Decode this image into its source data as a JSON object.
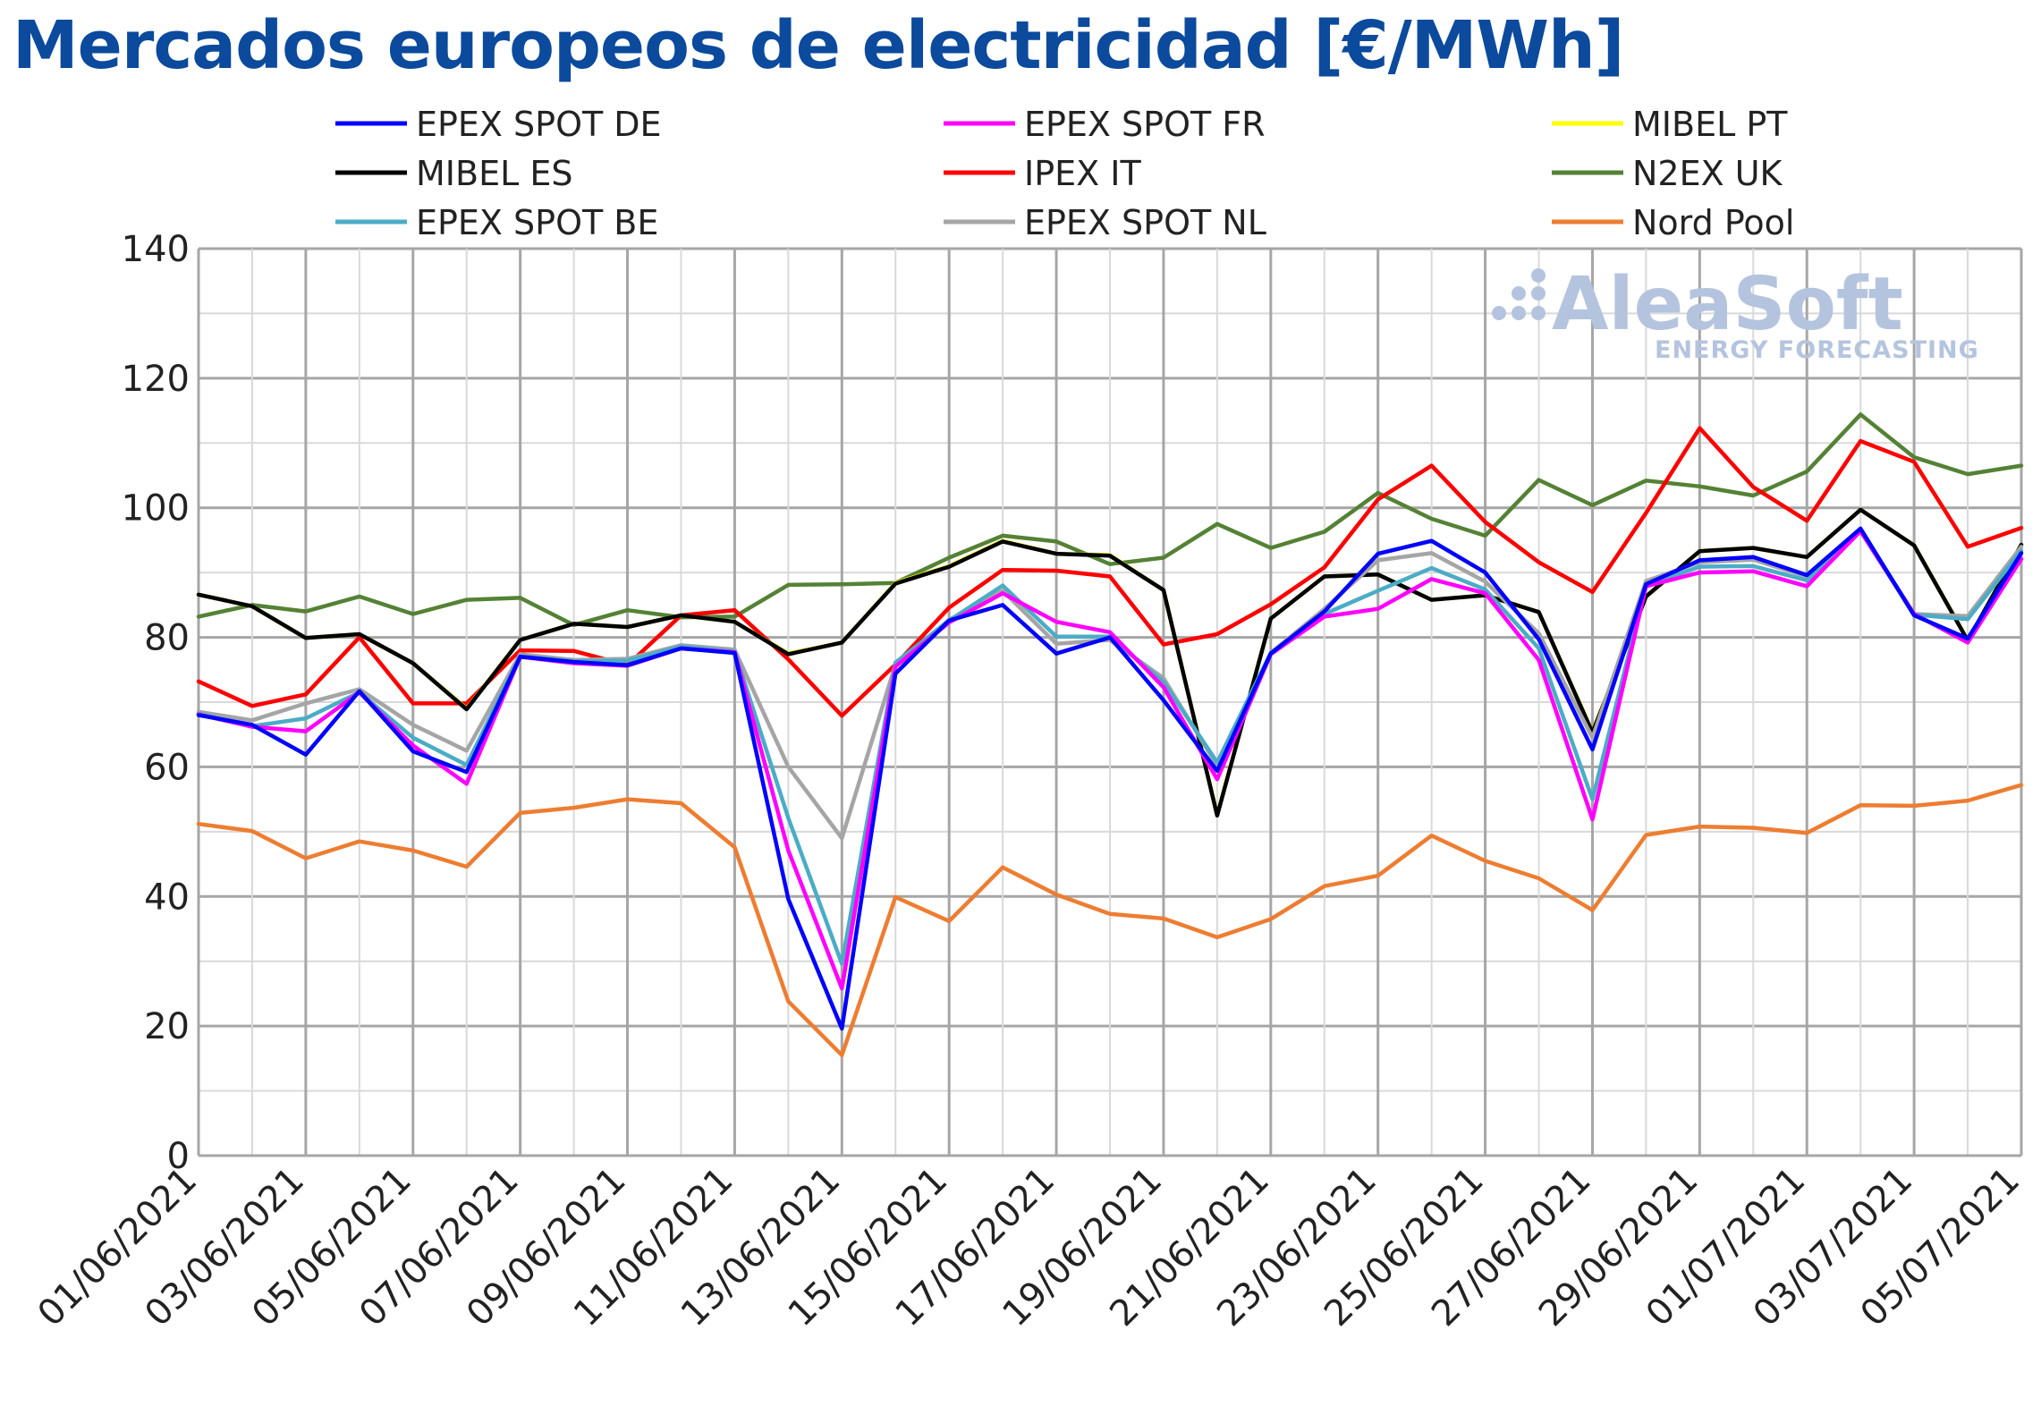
{
  "title": "Mercados europeos de electricidad [€/MWh]",
  "watermark": {
    "brand": "AleaSoft",
    "tagline": "ENERGY FORECASTING",
    "color": "#b5c4de"
  },
  "chart_data": {
    "type": "line",
    "title": "Mercados europeos de electricidad [€/MWh]",
    "xlabel": "",
    "ylabel": "",
    "ylim": [
      0,
      140
    ],
    "yticks": [
      "0",
      "20",
      "40",
      "60",
      "80",
      "100",
      "120",
      "140"
    ],
    "grid": true,
    "legend_position": "top",
    "x": [
      "01/06/2021",
      "02/06/2021",
      "03/06/2021",
      "04/06/2021",
      "05/06/2021",
      "06/06/2021",
      "07/06/2021",
      "08/06/2021",
      "09/06/2021",
      "10/06/2021",
      "11/06/2021",
      "12/06/2021",
      "13/06/2021",
      "14/06/2021",
      "15/06/2021",
      "16/06/2021",
      "17/06/2021",
      "18/06/2021",
      "19/06/2021",
      "20/06/2021",
      "21/06/2021",
      "22/06/2021",
      "23/06/2021",
      "24/06/2021",
      "25/06/2021",
      "26/06/2021",
      "27/06/2021",
      "28/06/2021",
      "29/06/2021",
      "30/06/2021",
      "01/07/2021",
      "02/07/2021",
      "03/07/2021",
      "04/07/2021",
      "05/07/2021"
    ],
    "x_tick_labels": [
      "01/06/2021",
      "03/06/2021",
      "05/06/2021",
      "07/06/2021",
      "09/06/2021",
      "11/06/2021",
      "13/06/2021",
      "15/06/2021",
      "17/06/2021",
      "19/06/2021",
      "21/06/2021",
      "23/06/2021",
      "25/06/2021",
      "27/06/2021",
      "29/06/2021",
      "01/07/2021",
      "03/07/2021",
      "05/07/2021"
    ],
    "series": [
      {
        "name": "N2EX UK",
        "color": "#548235",
        "values": [
          83.2,
          85.0,
          84.0,
          86.3,
          83.6,
          85.8,
          86.1,
          81.9,
          84.2,
          83.1,
          83.2,
          88.1,
          88.2,
          88.4,
          92.3,
          95.7,
          94.8,
          91.3,
          92.3,
          97.5,
          93.8,
          96.3,
          102.3,
          98.3,
          95.7,
          104.3,
          100.4,
          104.2,
          103.3,
          101.9,
          105.6,
          114.4,
          107.8,
          105.2,
          106.5
        ]
      },
      {
        "name": "IPEX IT",
        "color": "#ff0000",
        "values": [
          73.2,
          69.4,
          71.2,
          80.0,
          69.8,
          69.8,
          78.0,
          77.9,
          75.7,
          83.4,
          84.2,
          76.6,
          67.9,
          75.8,
          84.6,
          90.4,
          90.3,
          89.4,
          78.9,
          80.5,
          85.1,
          90.8,
          101.3,
          106.5,
          97.8,
          91.6,
          87.0,
          99.2,
          112.3,
          103.2,
          98.0,
          110.3,
          107.1,
          94.0,
          96.9
        ]
      },
      {
        "name": "MIBEL PT",
        "color": "#ffff00",
        "values": [
          86.6,
          84.8,
          79.9,
          80.5,
          76.0,
          69.0,
          79.6,
          82.1,
          81.6,
          83.4,
          82.4,
          77.5,
          79.2,
          88.4,
          91.0,
          94.9,
          92.9,
          92.7,
          87.3,
          52.6,
          82.9,
          89.4,
          89.7,
          85.8,
          86.5,
          83.9,
          65.4,
          86.3,
          93.3,
          93.8,
          92.4,
          99.7,
          94.2,
          79.6,
          94.3
        ]
      },
      {
        "name": "MIBEL ES",
        "color": "#000000",
        "values": [
          86.6,
          84.8,
          79.9,
          80.5,
          76.0,
          68.9,
          79.6,
          82.1,
          81.6,
          83.4,
          82.4,
          77.4,
          79.2,
          88.3,
          90.9,
          94.8,
          92.9,
          92.6,
          87.3,
          52.5,
          82.9,
          89.4,
          89.7,
          85.8,
          86.5,
          83.9,
          65.3,
          86.3,
          93.3,
          93.8,
          92.4,
          99.7,
          94.2,
          79.5,
          94.3
        ]
      },
      {
        "name": "EPEX SPOT NL",
        "color": "#a5a5a5",
        "values": [
          68.5,
          67.2,
          69.8,
          72.0,
          66.5,
          62.5,
          77.4,
          76.5,
          76.7,
          78.8,
          78.1,
          60.0,
          49.0,
          75.8,
          82.7,
          87.2,
          79.0,
          79.6,
          73.7,
          60.2,
          77.6,
          84.4,
          91.9,
          93.0,
          88.6,
          80.6,
          64.5,
          88.7,
          91.6,
          92.0,
          89.4,
          96.6,
          83.6,
          83.3,
          94.0
        ]
      },
      {
        "name": "EPEX SPOT BE",
        "color": "#4bacc6",
        "values": [
          68.2,
          66.3,
          67.5,
          71.5,
          64.5,
          60.3,
          77.1,
          76.3,
          76.4,
          78.6,
          77.8,
          52.1,
          29.6,
          76.1,
          82.6,
          88.0,
          80.1,
          80.1,
          73.1,
          60.7,
          77.6,
          83.6,
          87.2,
          90.7,
          87.4,
          78.3,
          55.0,
          88.0,
          90.9,
          91.0,
          88.8,
          96.4,
          83.5,
          82.8,
          93.4
        ]
      },
      {
        "name": "EPEX SPOT FR",
        "color": "#ff00ff",
        "values": [
          68.1,
          66.2,
          65.5,
          71.5,
          63.3,
          57.4,
          77.0,
          76.0,
          75.6,
          78.3,
          77.7,
          47.1,
          25.8,
          75.5,
          82.3,
          86.8,
          82.4,
          80.8,
          72.3,
          58.1,
          77.4,
          83.2,
          84.4,
          89.0,
          86.8,
          76.5,
          51.9,
          87.9,
          90.0,
          90.2,
          87.9,
          96.4,
          83.6,
          79.2,
          92.1
        ]
      },
      {
        "name": "EPEX SPOT DE",
        "color": "#0000ff",
        "values": [
          68.0,
          66.5,
          61.9,
          71.7,
          62.4,
          59.2,
          77.0,
          76.2,
          75.7,
          78.3,
          77.6,
          39.6,
          19.6,
          74.4,
          82.6,
          85.0,
          77.5,
          80.0,
          70.3,
          59.4,
          77.5,
          84.0,
          92.9,
          94.9,
          90.0,
          79.7,
          62.7,
          88.2,
          91.9,
          92.4,
          89.6,
          96.8,
          83.4,
          79.8,
          93.0
        ]
      },
      {
        "name": "Nord Pool",
        "color": "#ed7d31",
        "values": [
          51.2,
          50.1,
          45.9,
          48.5,
          47.1,
          44.6,
          52.9,
          53.7,
          55.0,
          54.4,
          47.6,
          23.8,
          15.5,
          39.9,
          36.2,
          44.5,
          40.3,
          37.3,
          36.6,
          33.7,
          36.5,
          41.6,
          43.2,
          49.4,
          45.5,
          42.8,
          37.9,
          49.5,
          50.8,
          50.6,
          49.8,
          54.1,
          54.0,
          54.8,
          57.2
        ]
      }
    ],
    "legend_order": [
      "EPEX SPOT DE",
      "EPEX SPOT FR",
      "MIBEL PT",
      "MIBEL ES",
      "IPEX IT",
      "N2EX UK",
      "EPEX SPOT BE",
      "EPEX SPOT NL",
      "Nord Pool"
    ]
  }
}
